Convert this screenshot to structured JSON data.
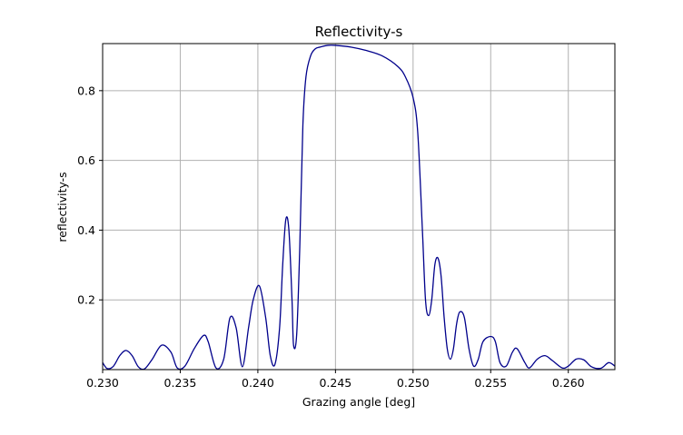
{
  "chart_data": {
    "type": "line",
    "title": "Reflectivity-s",
    "xlabel": "Grazing angle [deg]",
    "ylabel": "reflectivity-s",
    "xlim": [
      0.23,
      0.263
    ],
    "ylim": [
      0.0,
      0.935
    ],
    "x_ticks": [
      0.23,
      0.235,
      0.24,
      0.245,
      0.25,
      0.255,
      0.26
    ],
    "x_tick_labels": [
      "0.230",
      "0.235",
      "0.240",
      "0.245",
      "0.250",
      "0.255",
      "0.260"
    ],
    "y_ticks": [
      0.2,
      0.4,
      0.6,
      0.8
    ],
    "y_tick_labels": [
      "0.2",
      "0.4",
      "0.6",
      "0.8"
    ],
    "grid": true,
    "line_color": "#00008b",
    "series": [
      {
        "x": [
          0.23,
          0.2303,
          0.2307,
          0.2311,
          0.2315,
          0.2319,
          0.2323,
          0.2327,
          0.2332,
          0.2338,
          0.2344,
          0.2348,
          0.2353,
          0.2359,
          0.2365,
          0.2368,
          0.2373,
          0.2378,
          0.2382,
          0.2386,
          0.239,
          0.2394,
          0.2397,
          0.2401,
          0.2405,
          0.2408,
          0.2411,
          0.2414,
          0.2416,
          0.2418,
          0.242,
          0.2422,
          0.2423,
          0.2425,
          0.2427,
          0.2429,
          0.2431,
          0.2434,
          0.2437,
          0.244,
          0.2445,
          0.245,
          0.246,
          0.247,
          0.248,
          0.249,
          0.2495,
          0.25,
          0.2503,
          0.2506,
          0.2508,
          0.251,
          0.2512,
          0.2514,
          0.2516,
          0.2518,
          0.252,
          0.2522,
          0.2524,
          0.2526,
          0.2528,
          0.253,
          0.2533,
          0.2536,
          0.2539,
          0.2542,
          0.2545,
          0.255,
          0.2553,
          0.2556,
          0.256,
          0.2564,
          0.2567,
          0.2572,
          0.2575,
          0.258,
          0.2585,
          0.259,
          0.2596,
          0.26,
          0.2605,
          0.261,
          0.2615,
          0.2621,
          0.2626,
          0.263
        ],
        "y": [
          0.02,
          0.003,
          0.01,
          0.04,
          0.055,
          0.04,
          0.008,
          0.002,
          0.03,
          0.07,
          0.05,
          0.005,
          0.01,
          0.06,
          0.098,
          0.08,
          0.005,
          0.03,
          0.148,
          0.12,
          0.008,
          0.12,
          0.2,
          0.24,
          0.15,
          0.04,
          0.015,
          0.12,
          0.3,
          0.43,
          0.4,
          0.2,
          0.07,
          0.1,
          0.35,
          0.7,
          0.84,
          0.9,
          0.92,
          0.925,
          0.93,
          0.93,
          0.925,
          0.915,
          0.9,
          0.87,
          0.84,
          0.78,
          0.68,
          0.4,
          0.2,
          0.155,
          0.2,
          0.3,
          0.32,
          0.27,
          0.15,
          0.06,
          0.03,
          0.06,
          0.13,
          0.165,
          0.15,
          0.06,
          0.01,
          0.03,
          0.08,
          0.095,
          0.08,
          0.02,
          0.01,
          0.05,
          0.06,
          0.02,
          0.005,
          0.03,
          0.04,
          0.025,
          0.005,
          0.01,
          0.03,
          0.028,
          0.008,
          0.004,
          0.02,
          0.01
        ]
      }
    ]
  }
}
